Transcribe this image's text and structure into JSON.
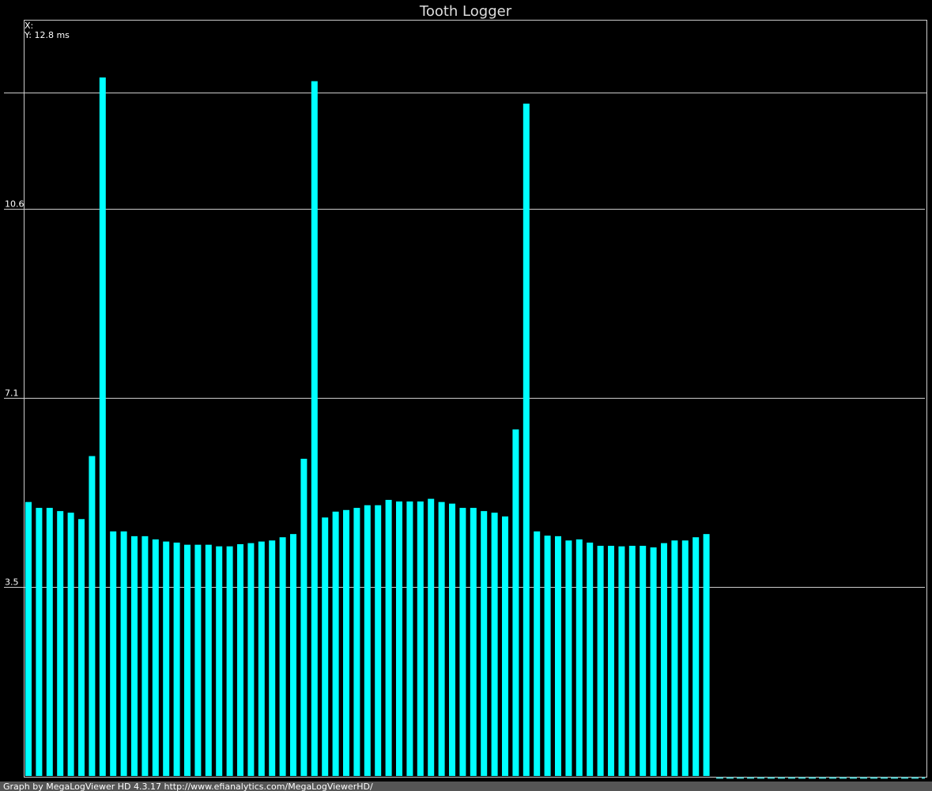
{
  "chart_data": {
    "type": "bar",
    "title": "Tooth Logger",
    "color": "#00ffff",
    "values": [
      5.13,
      5.02,
      5.02,
      4.96,
      4.93,
      4.81,
      5.99,
      13.08,
      4.58,
      4.58,
      4.49,
      4.49,
      4.43,
      4.39,
      4.37,
      4.33,
      4.33,
      4.33,
      4.3,
      4.3,
      4.34,
      4.36,
      4.39,
      4.41,
      4.47,
      4.53,
      5.94,
      13.01,
      4.84,
      4.95,
      4.98,
      5.02,
      5.07,
      5.07,
      5.17,
      5.14,
      5.14,
      5.14,
      5.19,
      5.13,
      5.1,
      5.02,
      5.02,
      4.96,
      4.93,
      4.86,
      6.49,
      12.59,
      4.58,
      4.5,
      4.49,
      4.41,
      4.43,
      4.37,
      4.31,
      4.31,
      4.3,
      4.31,
      4.31,
      4.28,
      4.36,
      4.41,
      4.41,
      4.47,
      4.53
    ],
    "ylim": [
      0,
      14.16
    ],
    "yticks": [
      {
        "value": 3.54,
        "label": "3.5"
      },
      {
        "value": 7.08,
        "label": "7.1"
      },
      {
        "value": 10.62,
        "label": "10.6"
      }
    ],
    "grid": true,
    "cursor": {
      "x_label": "X:",
      "y_label": "Y: 12.8 ms",
      "y": 12.8
    },
    "footer": "Graph by MegaLogViewer HD 4.3.17 http://www.efianalytics.com/MegaLogViewerHD/"
  }
}
